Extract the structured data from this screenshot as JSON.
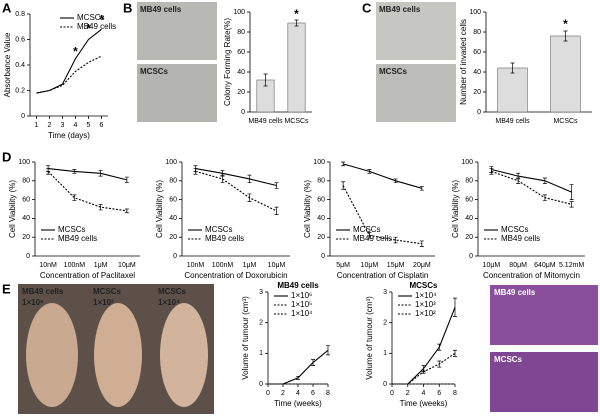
{
  "panel_labels": [
    "A",
    "B",
    "C",
    "D",
    "E"
  ],
  "images": {
    "B": [
      "MB49 cells",
      "MCSCs"
    ],
    "C": [
      "MB49 cells",
      "MCSCs"
    ],
    "E_mice": [
      {
        "name": "MB49 cells",
        "dose": "1×10⁶"
      },
      {
        "name": "MCSCs",
        "dose": "1×10³"
      },
      {
        "name": "MCSCs",
        "dose": "1×10⁴"
      }
    ],
    "E_histology": [
      "MB49 cells",
      "MCSCs"
    ]
  },
  "chart_data": [
    {
      "type": "line",
      "ylabel": "Absorbance Value",
      "xlabel": "Time (days)",
      "x": [
        1,
        2,
        3,
        4,
        5,
        6
      ],
      "xlim": [
        0.5,
        6.5
      ],
      "xticks": [
        1,
        2,
        3,
        4,
        5,
        6
      ],
      "ylim": [
        0,
        0.8
      ],
      "yticks": [
        0,
        0.2,
        0.4,
        0.6,
        0.8
      ],
      "legend": "top-right",
      "series": [
        {
          "name": "MCSCs",
          "color": "#000000",
          "dash": false,
          "values": [
            0.18,
            0.2,
            0.25,
            0.45,
            0.6,
            0.68
          ]
        },
        {
          "name": "MB49 cells",
          "color": "#000000",
          "dash": true,
          "values": [
            0.18,
            0.2,
            0.24,
            0.35,
            0.42,
            0.47
          ]
        }
      ],
      "annotations": [
        {
          "text": "*",
          "x": 4,
          "y": 0.5
        },
        {
          "text": "*",
          "x": 5,
          "y": 0.68
        },
        {
          "text": "*",
          "x": 6,
          "y": 0.75
        }
      ]
    },
    {
      "type": "bar",
      "ylabel": "Colony Forming Rate(%)",
      "categories": [
        "MB49 cells",
        "MCSCs"
      ],
      "values": [
        32,
        89
      ],
      "errors": [
        6,
        3
      ],
      "color": "#dddddd",
      "ylim": [
        0,
        100
      ],
      "yticks": [
        0,
        20,
        40,
        60,
        80,
        100
      ],
      "annotations": [
        {
          "text": "*",
          "category": "MCSCs",
          "y": 97
        }
      ]
    },
    {
      "type": "bar",
      "ylabel": "Number of invaded cells",
      "categories": [
        "MB49 cells",
        "MCSCs"
      ],
      "values": [
        44,
        76
      ],
      "errors": [
        5,
        5
      ],
      "color": "#dddddd",
      "ylim": [
        0,
        100
      ],
      "yticks": [
        0,
        20,
        40,
        60,
        80,
        100
      ],
      "annotations": [
        {
          "text": "*",
          "category": "MCSCs",
          "y": 87
        }
      ]
    },
    {
      "type": "line",
      "ylabel": "Cell Viability (%)",
      "xlabel": "Concentration of Paclitaxel",
      "categories": [
        "10nM",
        "100nM",
        "1μM",
        "10μM"
      ],
      "ylim": [
        0,
        100
      ],
      "yticks": [
        0,
        20,
        40,
        60,
        80,
        100
      ],
      "legend": "bottom-left",
      "series": [
        {
          "name": "MCSCs",
          "color": "#000000",
          "dash": false,
          "values": [
            93,
            90,
            88,
            81
          ],
          "errors": [
            3,
            2,
            3,
            3
          ]
        },
        {
          "name": "MB49 cells",
          "color": "#000000",
          "dash": true,
          "values": [
            90,
            62,
            52,
            48
          ],
          "errors": [
            3,
            3,
            3,
            2
          ]
        }
      ]
    },
    {
      "type": "line",
      "ylabel": "Cell Viability (%)",
      "xlabel": "Concentration of Doxorubicin",
      "categories": [
        "10nM",
        "100nM",
        "1μM",
        "10μM"
      ],
      "ylim": [
        0,
        100
      ],
      "yticks": [
        0,
        20,
        40,
        60,
        80,
        100
      ],
      "legend": "bottom-left",
      "series": [
        {
          "name": "MCSCs",
          "color": "#000000",
          "dash": false,
          "values": [
            93,
            88,
            82,
            75
          ],
          "errors": [
            3,
            3,
            4,
            3
          ]
        },
        {
          "name": "MB49 cells",
          "color": "#000000",
          "dash": true,
          "values": [
            90,
            82,
            62,
            48
          ],
          "errors": [
            3,
            4,
            4,
            4
          ]
        }
      ]
    },
    {
      "type": "line",
      "ylabel": "Cell Viability (%)",
      "xlabel": "Concentration of Cisplatin",
      "categories": [
        "5μM",
        "10μM",
        "15μM",
        "20μM"
      ],
      "ylim": [
        0,
        100
      ],
      "yticks": [
        0,
        20,
        40,
        60,
        80,
        100
      ],
      "legend": "bottom-left",
      "series": [
        {
          "name": "MCSCs",
          "color": "#000000",
          "dash": false,
          "values": [
            98,
            90,
            80,
            72
          ],
          "errors": [
            2,
            2,
            2,
            2
          ]
        },
        {
          "name": "MB49 cells",
          "color": "#000000",
          "dash": true,
          "values": [
            75,
            22,
            17,
            13
          ],
          "errors": [
            4,
            3,
            3,
            3
          ]
        }
      ]
    },
    {
      "type": "line",
      "ylabel": "Cell Viability (%)",
      "xlabel": "Concentration of Mitomycin",
      "categories": [
        "10μM",
        "80μM",
        "640μM",
        "5.12mM"
      ],
      "ylim": [
        0,
        100
      ],
      "yticks": [
        0,
        20,
        40,
        60,
        80,
        100
      ],
      "legend": "bottom-left",
      "series": [
        {
          "name": "MCSCs",
          "color": "#000000",
          "dash": false,
          "values": [
            92,
            85,
            80,
            68
          ],
          "errors": [
            3,
            3,
            3,
            8
          ]
        },
        {
          "name": "MB49 cells",
          "color": "#000000",
          "dash": true,
          "values": [
            90,
            80,
            62,
            55
          ],
          "errors": [
            3,
            3,
            3,
            3
          ]
        }
      ]
    },
    {
      "type": "line",
      "title": "MB49 cells",
      "ylabel": "Volume of tumour (cm³)",
      "xlabel": "Time (weeks)",
      "x": [
        0,
        2,
        4,
        6,
        8
      ],
      "xlim": [
        0,
        8
      ],
      "xticks": [
        0,
        2,
        4,
        6,
        8
      ],
      "ylim": [
        0,
        3
      ],
      "yticks": [
        0,
        1,
        2,
        3
      ],
      "legend": "top-left",
      "series": [
        {
          "name": "1×10⁶",
          "color": "#000000",
          "dash": false,
          "values": [
            0,
            0,
            0.2,
            0.7,
            1.1
          ],
          "errors": [
            0,
            0,
            0.05,
            0.1,
            0.15
          ]
        },
        {
          "name": "1×10⁵",
          "color": "#000000",
          "dash": true,
          "values": [
            0,
            0,
            0,
            0,
            0
          ]
        },
        {
          "name": "1×10⁴",
          "color": "#000000",
          "dash": true,
          "values": [
            0,
            0,
            0,
            0,
            0
          ]
        }
      ]
    },
    {
      "type": "line",
      "title": "MCSCs",
      "ylabel": "Volume of tumour (cm³)",
      "xlabel": "Time (weeks)",
      "x": [
        0,
        2,
        4,
        6,
        8
      ],
      "xlim": [
        0,
        8
      ],
      "xticks": [
        0,
        2,
        4,
        6,
        8
      ],
      "ylim": [
        0,
        3
      ],
      "yticks": [
        0,
        1,
        2,
        3
      ],
      "legend": "top-left",
      "series": [
        {
          "name": "1×10⁴",
          "color": "#000000",
          "dash": false,
          "values": [
            0,
            0,
            0.5,
            1.2,
            2.5
          ],
          "errors": [
            0,
            0,
            0.1,
            0.1,
            0.3
          ]
        },
        {
          "name": "1×10³",
          "color": "#000000",
          "dash": true,
          "values": [
            0,
            0,
            0.4,
            0.65,
            1.0
          ],
          "errors": [
            0,
            0,
            0.05,
            0.1,
            0.1
          ]
        },
        {
          "name": "1×10²",
          "color": "#000000",
          "dash": true,
          "values": [
            0,
            0,
            0,
            0,
            0
          ]
        }
      ]
    }
  ]
}
